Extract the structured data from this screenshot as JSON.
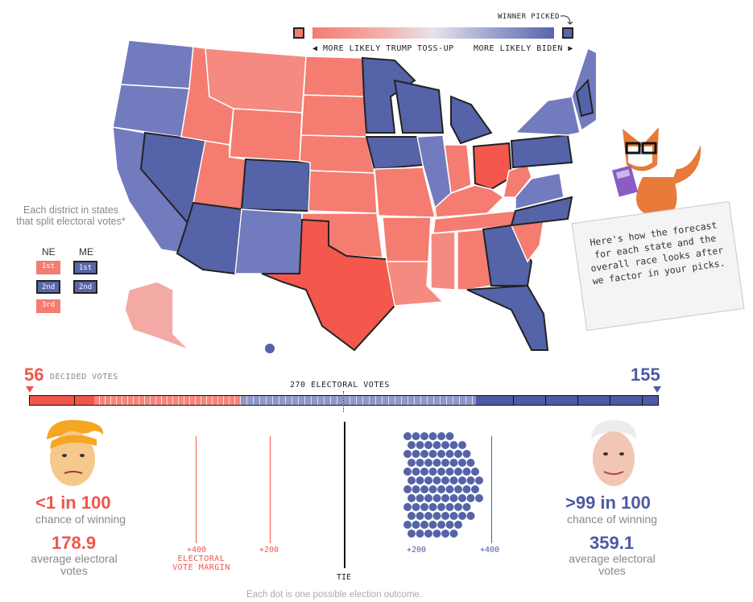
{
  "legend": {
    "winner_picked": "WINNER PICKED",
    "more_likely_trump": "◀ MORE LIKELY TRUMP",
    "toss_up": "TOSS-UP",
    "more_likely_biden": "MORE LIKELY BIDEN ▶",
    "trump_color": "#f47c70",
    "biden_color": "#5966aa"
  },
  "districts": {
    "note": "Each district in states that split electoral votes*",
    "ne_label": "NE",
    "me_label": "ME",
    "ne": [
      {
        "label": "1st",
        "party": "r"
      },
      {
        "label": "2nd",
        "party": "b"
      },
      {
        "label": "3rd",
        "party": "r"
      }
    ],
    "me": [
      {
        "label": "1st",
        "party": "b"
      },
      {
        "label": "2nd",
        "party": "b"
      }
    ]
  },
  "callout": {
    "text": "Here's how the forecast for each state and the overall race looks after we factor in your picks."
  },
  "bar": {
    "trump_votes": "56",
    "decided_label": "DECIDED VOTES",
    "biden_votes": "155",
    "threshold_label": "270 ELECTORAL VOTES",
    "trump_color": "#f0564a",
    "biden_color": "#4d5aa5"
  },
  "trump": {
    "odds": "<1 in 100",
    "odds_label": "chance of winning",
    "avg": "178.9",
    "avg_label": "average electoral votes"
  },
  "biden": {
    "odds": ">99 in 100",
    "odds_label": "chance of winning",
    "avg": "359.1",
    "avg_label": "average electoral votes"
  },
  "distribution": {
    "left_400": "+400",
    "margin_label": "ELECTORAL VOTE MARGIN",
    "left_200": "+200",
    "tie": "TIE",
    "right_200": "+200",
    "right_400": "+400",
    "footnote": "Each dot is one possible election outcome."
  }
}
